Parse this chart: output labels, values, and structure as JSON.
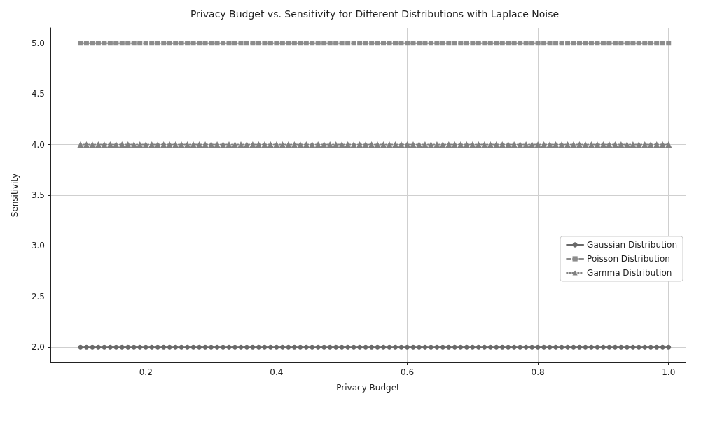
{
  "chart_data": {
    "type": "line",
    "title": "Privacy Budget vs. Sensitivity for Different Distributions with Laplace Noise",
    "xlabel": "Privacy Budget",
    "ylabel": "Sensitivity",
    "x": [
      0.1,
      0.1091,
      0.1182,
      0.1273,
      0.1364,
      0.1455,
      0.1545,
      0.1636,
      0.1727,
      0.1818,
      0.1909,
      0.2,
      0.2091,
      0.2182,
      0.2273,
      0.2364,
      0.2455,
      0.2545,
      0.2636,
      0.2727,
      0.2818,
      0.2909,
      0.3,
      0.3091,
      0.3182,
      0.3273,
      0.3364,
      0.3455,
      0.3545,
      0.3636,
      0.3727,
      0.3818,
      0.3909,
      0.4,
      0.4091,
      0.4182,
      0.4273,
      0.4364,
      0.4455,
      0.4545,
      0.4636,
      0.4727,
      0.4818,
      0.4909,
      0.5,
      0.5091,
      0.5182,
      0.5273,
      0.5364,
      0.5455,
      0.5545,
      0.5636,
      0.5727,
      0.5818,
      0.5909,
      0.6,
      0.6091,
      0.6182,
      0.6273,
      0.6364,
      0.6455,
      0.6545,
      0.6636,
      0.6727,
      0.6818,
      0.6909,
      0.7,
      0.7091,
      0.7182,
      0.7273,
      0.7364,
      0.7455,
      0.7545,
      0.7636,
      0.7727,
      0.7818,
      0.7909,
      0.8,
      0.8091,
      0.8182,
      0.8273,
      0.8364,
      0.8455,
      0.8545,
      0.8636,
      0.8727,
      0.8818,
      0.8909,
      0.9,
      0.9091,
      0.9182,
      0.9273,
      0.9364,
      0.9455,
      0.9545,
      0.9636,
      0.9727,
      0.9818,
      0.9909,
      1.0
    ],
    "series": [
      {
        "name": "Gaussian Distribution",
        "color": "#696969",
        "marker": "circle",
        "line_style": "solid",
        "values": [
          2,
          2,
          2,
          2,
          2,
          2,
          2,
          2,
          2,
          2,
          2,
          2,
          2,
          2,
          2,
          2,
          2,
          2,
          2,
          2,
          2,
          2,
          2,
          2,
          2,
          2,
          2,
          2,
          2,
          2,
          2,
          2,
          2,
          2,
          2,
          2,
          2,
          2,
          2,
          2,
          2,
          2,
          2,
          2,
          2,
          2,
          2,
          2,
          2,
          2,
          2,
          2,
          2,
          2,
          2,
          2,
          2,
          2,
          2,
          2,
          2,
          2,
          2,
          2,
          2,
          2,
          2,
          2,
          2,
          2,
          2,
          2,
          2,
          2,
          2,
          2,
          2,
          2,
          2,
          2,
          2,
          2,
          2,
          2,
          2,
          2,
          2,
          2,
          2,
          2,
          2,
          2,
          2,
          2,
          2,
          2,
          2,
          2,
          2,
          2
        ]
      },
      {
        "name": "Poisson Distribution",
        "color": "#8c8c8c",
        "marker": "square",
        "line_style": "dashed",
        "values": [
          5,
          5,
          5,
          5,
          5,
          5,
          5,
          5,
          5,
          5,
          5,
          5,
          5,
          5,
          5,
          5,
          5,
          5,
          5,
          5,
          5,
          5,
          5,
          5,
          5,
          5,
          5,
          5,
          5,
          5,
          5,
          5,
          5,
          5,
          5,
          5,
          5,
          5,
          5,
          5,
          5,
          5,
          5,
          5,
          5,
          5,
          5,
          5,
          5,
          5,
          5,
          5,
          5,
          5,
          5,
          5,
          5,
          5,
          5,
          5,
          5,
          5,
          5,
          5,
          5,
          5,
          5,
          5,
          5,
          5,
          5,
          5,
          5,
          5,
          5,
          5,
          5,
          5,
          5,
          5,
          5,
          5,
          5,
          5,
          5,
          5,
          5,
          5,
          5,
          5,
          5,
          5,
          5,
          5,
          5,
          5,
          5,
          5,
          5,
          5
        ]
      },
      {
        "name": "Gamma Distribution",
        "color": "#808080",
        "marker": "triangle",
        "line_style": "dotted",
        "values": [
          4,
          4,
          4,
          4,
          4,
          4,
          4,
          4,
          4,
          4,
          4,
          4,
          4,
          4,
          4,
          4,
          4,
          4,
          4,
          4,
          4,
          4,
          4,
          4,
          4,
          4,
          4,
          4,
          4,
          4,
          4,
          4,
          4,
          4,
          4,
          4,
          4,
          4,
          4,
          4,
          4,
          4,
          4,
          4,
          4,
          4,
          4,
          4,
          4,
          4,
          4,
          4,
          4,
          4,
          4,
          4,
          4,
          4,
          4,
          4,
          4,
          4,
          4,
          4,
          4,
          4,
          4,
          4,
          4,
          4,
          4,
          4,
          4,
          4,
          4,
          4,
          4,
          4,
          4,
          4,
          4,
          4,
          4,
          4,
          4,
          4,
          4,
          4,
          4,
          4,
          4,
          4,
          4,
          4,
          4,
          4,
          4,
          4,
          4,
          4
        ]
      }
    ],
    "xlim": [
      0.054,
      1.026
    ],
    "xticks": [
      0.2,
      0.4,
      0.6,
      0.8,
      {
        "value": 1,
        "label": "1.0"
      }
    ],
    "ylim": [
      1.85,
      5.15
    ],
    "yticks": [
      {
        "value": 2,
        "label": "2.0"
      },
      2.5,
      {
        "value": 3,
        "label": "3.0"
      },
      3.5,
      {
        "value": 4,
        "label": "4.0"
      },
      4.5,
      {
        "value": 5,
        "label": "5.0"
      }
    ],
    "grid": true,
    "legend": "right"
  }
}
